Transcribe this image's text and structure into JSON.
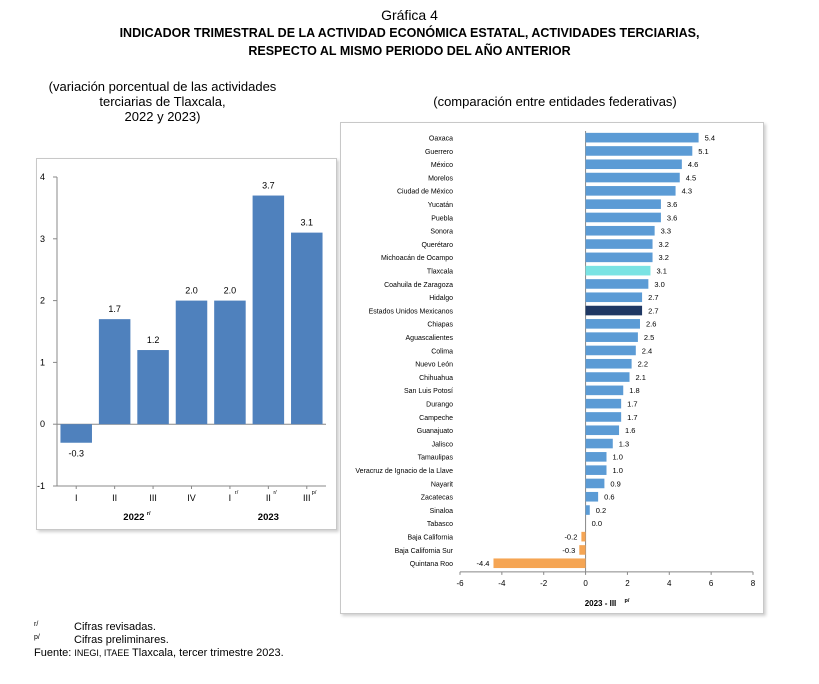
{
  "header": {
    "title": "Gráfica 4",
    "line1": "INDICADOR TRIMESTRAL DE LA ACTIVIDAD ECONÓMICA ESTATAL, ACTIVIDADES TERCIARIAS,",
    "line2": "RESPECTO AL MISMO PERIODO DEL AÑO ANTERIOR"
  },
  "left_subtitle": {
    "line1": "(variación porcentual de las actividades",
    "line2": "terciarias de Tlaxcala,",
    "line3": "2022 y 2023)"
  },
  "right_subtitle": "(comparación entre entidades federativas)",
  "colors": {
    "left_bar": "#4f81bd",
    "state_bar": "#5b9bd5",
    "tlaxcala_bar": "#79e3e3",
    "national_bar": "#1f3864",
    "negative_bar": "#f5a554"
  },
  "notes": {
    "revised_mark": "r/",
    "revised_text": "Cifras revisadas.",
    "preliminary_mark": "p/",
    "preliminary_text": "Cifras preliminares.",
    "source_prefix": "Fuente: ",
    "source_orgs": "INEGI, ITAEE",
    "source_rest": " Tlaxcala, tercer trimestre 2023."
  },
  "chart_data": [
    {
      "type": "bar",
      "categories": [
        "I",
        "II",
        "III",
        "IV",
        "I",
        "II",
        "III"
      ],
      "category_marks": [
        "",
        "",
        "",
        "",
        "r/",
        "r/",
        "p/"
      ],
      "groups": [
        {
          "label": "2022",
          "mark": "r/",
          "count": 4
        },
        {
          "label": "2023",
          "mark": "",
          "count": 3
        }
      ],
      "values": [
        -0.3,
        1.7,
        1.2,
        2.0,
        2.0,
        3.7,
        3.1
      ],
      "value_labels": [
        "-0.3",
        "1.7",
        "1.2",
        "2.0",
        "2.0",
        "3.7",
        "3.1"
      ],
      "ylim": [
        -1,
        4
      ],
      "yticks": [
        -1,
        0,
        1,
        2,
        3,
        4
      ],
      "grid": false
    },
    {
      "type": "bar",
      "orientation": "horizontal",
      "categories": [
        "Oaxaca",
        "Guerrero",
        "México",
        "Morelos",
        "Ciudad de México",
        "Yucatán",
        "Puebla",
        "Sonora",
        "Querétaro",
        "Michoacán de Ocampo",
        "Tlaxcala",
        "Coahuila de Zaragoza",
        "Hidalgo",
        "Estados Unidos Mexicanos",
        "Chiapas",
        "Aguascalientes",
        "Colima",
        "Nuevo León",
        "Chihuahua",
        "San Luis Potosí",
        "Durango",
        "Campeche",
        "Guanajuato",
        "Jalisco",
        "Tamaulipas",
        "Veracruz de Ignacio de la Llave",
        "Nayarit",
        "Zacatecas",
        "Sinaloa",
        "Tabasco",
        "Baja California",
        "Baja California Sur",
        "Quintana Roo"
      ],
      "values": [
        5.4,
        5.1,
        4.6,
        4.5,
        4.3,
        3.6,
        3.6,
        3.3,
        3.2,
        3.2,
        3.1,
        3.0,
        2.7,
        2.7,
        2.6,
        2.5,
        2.4,
        2.2,
        2.1,
        1.8,
        1.7,
        1.7,
        1.6,
        1.3,
        1.0,
        1.0,
        0.9,
        0.6,
        0.2,
        0.0,
        -0.2,
        -0.3,
        -4.4
      ],
      "value_labels": [
        "5.4",
        "5.1",
        "4.6",
        "4.5",
        "4.3",
        "3.6",
        "3.6",
        "3.3",
        "3.2",
        "3.2",
        "3.1",
        "3.0",
        "2.7",
        "2.7",
        "2.6",
        "2.5",
        "2.4",
        "2.2",
        "2.1",
        "1.8",
        "1.7",
        "1.7",
        "1.6",
        "1.3",
        "1.0",
        "1.0",
        "0.9",
        "0.6",
        "0.2",
        "0.0",
        "-0.2",
        "-0.3",
        "-4.4"
      ],
      "xlim": [
        -6,
        8
      ],
      "xticks": [
        -6,
        -4,
        -2,
        0,
        2,
        4,
        6,
        8
      ],
      "xlabel": "2023 - III",
      "xlabel_mark": "p/",
      "highlight": {
        "Tlaxcala": "tlaxcala",
        "Estados Unidos Mexicanos": "national"
      },
      "grid": false
    }
  ]
}
